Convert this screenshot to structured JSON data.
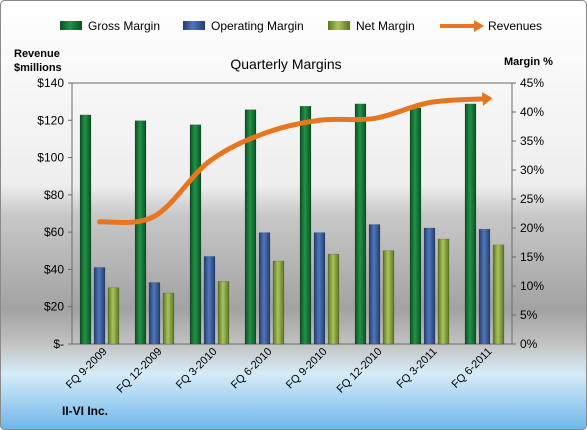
{
  "chart_data": {
    "type": "bar",
    "title": "Quarterly Margins",
    "footer": "II-VI Inc.",
    "left_axis": {
      "label_line1": "Revenue",
      "label_line2": "$millions",
      "ylim": [
        0,
        140
      ],
      "ticks": [
        "$-",
        "$20",
        "$40",
        "$60",
        "$80",
        "$100",
        "$120",
        "$140"
      ]
    },
    "right_axis": {
      "label": "Margin %",
      "ylim": [
        0,
        45
      ],
      "ticks": [
        "0%",
        "5%",
        "10%",
        "15%",
        "20%",
        "25%",
        "30%",
        "35%",
        "40%",
        "45%"
      ]
    },
    "categories": [
      "FQ 9-2009",
      "FQ 12-2009",
      "FQ 3-2010",
      "FQ 6-2010",
      "FQ 9-2010",
      "FQ 12-2010",
      "FQ 3-2011",
      "FQ 6-2011"
    ],
    "series": [
      {
        "name": "Gross Margin",
        "type": "bar",
        "axis": "right",
        "unit": "%",
        "values": [
          39.5,
          38.5,
          37.8,
          40.4,
          41.0,
          41.4,
          40.7,
          41.4
        ]
      },
      {
        "name": "Operating Margin",
        "type": "bar",
        "axis": "right",
        "unit": "%",
        "values": [
          13.2,
          10.6,
          15.1,
          19.2,
          19.2,
          20.6,
          20.0,
          19.8
        ]
      },
      {
        "name": "Net Margin",
        "type": "bar",
        "axis": "right",
        "unit": "%",
        "values": [
          9.7,
          8.8,
          10.8,
          14.3,
          15.5,
          16.1,
          18.1,
          17.1
        ]
      },
      {
        "name": "Revenues",
        "type": "line",
        "axis": "left",
        "unit": "$millions",
        "values": [
          65.5,
          68.5,
          98.0,
          113.0,
          120.0,
          121.0,
          129.5,
          131.5
        ]
      }
    ],
    "legend_position": "top",
    "grid": false,
    "colors": {
      "gross_margin": "#1a7a3a",
      "operating_margin": "#3d5e9e",
      "net_margin": "#8aaa3c",
      "revenues": "#e8761e"
    }
  }
}
